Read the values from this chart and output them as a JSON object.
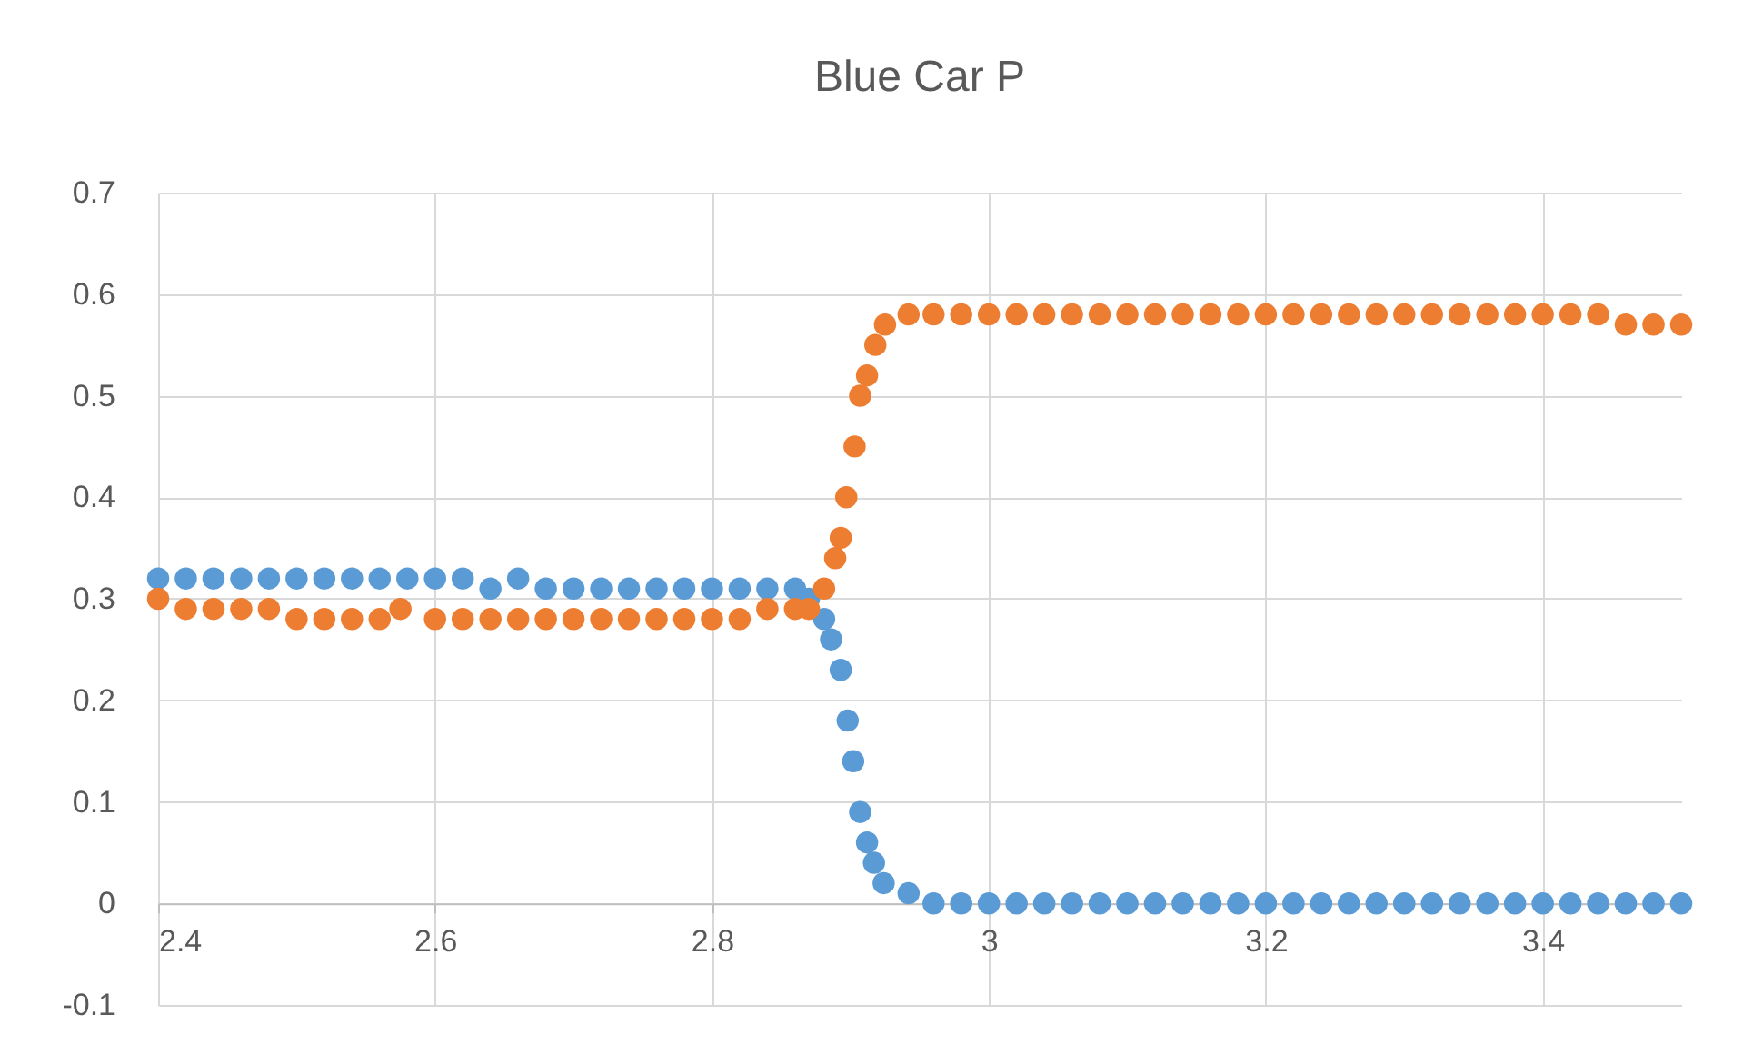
{
  "chart_data": {
    "type": "scatter",
    "title": "Blue Car P",
    "marker": "circle",
    "grid": true,
    "xlim": [
      2.4,
      3.5
    ],
    "xticks": [
      2.4,
      2.6,
      2.8,
      3,
      3.2,
      3.4
    ],
    "ylim": [
      -0.1,
      0.7
    ],
    "yticks": [
      -0.1,
      0,
      0.1,
      0.2,
      0.3,
      0.4,
      0.5,
      0.6,
      0.7
    ],
    "series": [
      {
        "color": "#5b9bd5",
        "x": [
          2.4,
          2.42,
          2.44,
          2.46,
          2.48,
          2.5,
          2.52,
          2.54,
          2.56,
          2.58,
          2.6,
          2.62,
          2.64,
          2.66,
          2.68,
          2.7,
          2.72,
          2.74,
          2.76,
          2.78,
          2.8,
          2.82,
          2.84,
          2.86,
          2.87,
          2.881,
          2.886,
          2.893,
          2.898,
          2.902,
          2.907,
          2.912,
          2.917,
          2.924,
          2.942,
          2.96,
          2.98,
          3,
          3.02,
          3.04,
          3.06,
          3.08,
          3.1,
          3.12,
          3.14,
          3.16,
          3.18,
          3.2,
          3.22,
          3.24,
          3.26,
          3.28,
          3.3,
          3.32,
          3.34,
          3.36,
          3.38,
          3.4,
          3.42,
          3.44,
          3.46,
          3.48,
          3.5
        ],
        "values": [
          0.32,
          0.32,
          0.32,
          0.32,
          0.32,
          0.32,
          0.32,
          0.32,
          0.32,
          0.32,
          0.32,
          0.32,
          0.31,
          0.32,
          0.31,
          0.31,
          0.31,
          0.31,
          0.31,
          0.31,
          0.31,
          0.31,
          0.31,
          0.31,
          0.3,
          0.28,
          0.26,
          0.23,
          0.18,
          0.14,
          0.09,
          0.06,
          0.04,
          0.02,
          0.01,
          0,
          0,
          0,
          0,
          0,
          0,
          0,
          0,
          0,
          0,
          0,
          0,
          0,
          0,
          0,
          0,
          0,
          0,
          0,
          0,
          0,
          0,
          0,
          0,
          0,
          0,
          0,
          0
        ]
      },
      {
        "color": "#ed7d31",
        "x": [
          2.4,
          2.42,
          2.44,
          2.46,
          2.48,
          2.5,
          2.52,
          2.54,
          2.56,
          2.575,
          2.6,
          2.62,
          2.64,
          2.66,
          2.68,
          2.7,
          2.72,
          2.74,
          2.76,
          2.78,
          2.8,
          2.82,
          2.84,
          2.86,
          2.87,
          2.881,
          2.889,
          2.893,
          2.897,
          2.903,
          2.907,
          2.912,
          2.918,
          2.925,
          2.942,
          2.96,
          2.98,
          3,
          3.02,
          3.04,
          3.06,
          3.08,
          3.1,
          3.12,
          3.14,
          3.16,
          3.18,
          3.2,
          3.22,
          3.24,
          3.26,
          3.28,
          3.3,
          3.32,
          3.34,
          3.36,
          3.38,
          3.4,
          3.42,
          3.44,
          3.46,
          3.48,
          3.5
        ],
        "values": [
          0.3,
          0.29,
          0.29,
          0.29,
          0.29,
          0.28,
          0.28,
          0.28,
          0.28,
          0.29,
          0.28,
          0.28,
          0.28,
          0.28,
          0.28,
          0.28,
          0.28,
          0.28,
          0.28,
          0.28,
          0.28,
          0.28,
          0.29,
          0.29,
          0.29,
          0.31,
          0.34,
          0.36,
          0.4,
          0.45,
          0.5,
          0.52,
          0.55,
          0.57,
          0.58,
          0.58,
          0.58,
          0.58,
          0.58,
          0.58,
          0.58,
          0.58,
          0.58,
          0.58,
          0.58,
          0.58,
          0.58,
          0.58,
          0.58,
          0.58,
          0.58,
          0.58,
          0.58,
          0.58,
          0.58,
          0.58,
          0.58,
          0.58,
          0.58,
          0.58,
          0.57,
          0.57,
          0.57
        ]
      }
    ]
  }
}
